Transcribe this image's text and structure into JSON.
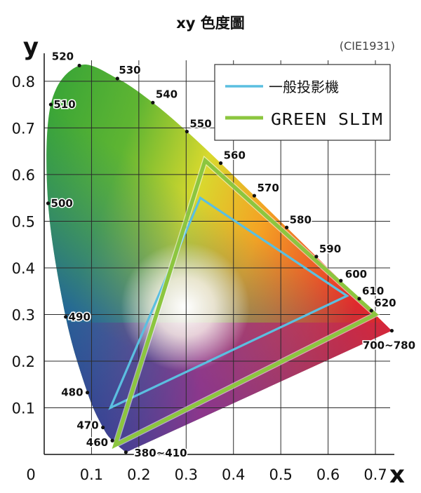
{
  "chart_data": {
    "type": "line",
    "title": "xy 色度圖",
    "subtitle": "(CIE1931)",
    "xlabel": "x",
    "ylabel": "y",
    "xlim": [
      0,
      0.74
    ],
    "ylim": [
      0,
      0.86
    ],
    "x_ticks": [
      "0",
      "0.1",
      "0.2",
      "0.3",
      "0.4",
      "0.5",
      "0.6",
      "0.7"
    ],
    "y_ticks": [
      "0.1",
      "0.2",
      "0.3",
      "0.4",
      "0.5",
      "0.6",
      "0.7",
      "0.8"
    ],
    "grid": true,
    "legend_position": "top-right",
    "locus_points": [
      {
        "label": "",
        "x": 0.1741,
        "y": 0.005
      },
      {
        "label": "380~410",
        "x": 0.1726,
        "y": 0.0048
      },
      {
        "label": "460",
        "x": 0.144,
        "y": 0.0297
      },
      {
        "label": "470",
        "x": 0.1241,
        "y": 0.0578
      },
      {
        "label": "480",
        "x": 0.0913,
        "y": 0.1327
      },
      {
        "label": "490",
        "x": 0.0454,
        "y": 0.295
      },
      {
        "label": "500",
        "x": 0.0082,
        "y": 0.5384
      },
      {
        "label": "510",
        "x": 0.0139,
        "y": 0.7502
      },
      {
        "label": "520",
        "x": 0.0743,
        "y": 0.8338
      },
      {
        "label": "530",
        "x": 0.1547,
        "y": 0.8059
      },
      {
        "label": "540",
        "x": 0.2296,
        "y": 0.7543
      },
      {
        "label": "550",
        "x": 0.3016,
        "y": 0.6923
      },
      {
        "label": "560",
        "x": 0.3731,
        "y": 0.6245
      },
      {
        "label": "570",
        "x": 0.4441,
        "y": 0.5547
      },
      {
        "label": "580",
        "x": 0.5125,
        "y": 0.4866
      },
      {
        "label": "590",
        "x": 0.5752,
        "y": 0.4242
      },
      {
        "label": "600",
        "x": 0.627,
        "y": 0.3725
      },
      {
        "label": "610",
        "x": 0.6658,
        "y": 0.334
      },
      {
        "label": "620",
        "x": 0.6915,
        "y": 0.3083
      },
      {
        "label": "700~780",
        "x": 0.7347,
        "y": 0.2653
      }
    ],
    "series": [
      {
        "name": "一般投影機",
        "color": "#5bbfe0",
        "points": [
          [
            0.33,
            0.55
          ],
          [
            0.64,
            0.34
          ],
          [
            0.14,
            0.1
          ]
        ]
      },
      {
        "name": "GREEN SLIM",
        "color": "#8cc63f",
        "points": [
          [
            0.34,
            0.63
          ],
          [
            0.7,
            0.3
          ],
          [
            0.15,
            0.02
          ]
        ]
      }
    ]
  }
}
